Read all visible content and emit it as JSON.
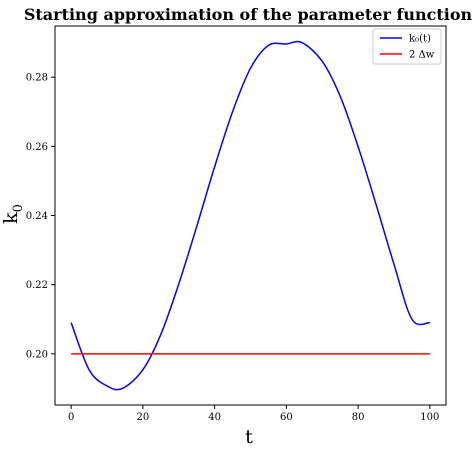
{
  "chart_data": {
    "type": "line",
    "title": "Starting approximation of the parameter function",
    "xlabel": "t",
    "ylabel": "k",
    "ylabel_subscript": "0",
    "xlim": [
      -4.5,
      104.5
    ],
    "ylim": [
      0.1852,
      0.2948
    ],
    "xticks": [
      0,
      20,
      40,
      60,
      80,
      100
    ],
    "xtick_labels": [
      "0",
      "20",
      "40",
      "60",
      "80",
      "100"
    ],
    "yticks": [
      0.2,
      0.22,
      0.24,
      0.26,
      0.28
    ],
    "ytick_labels": [
      "0.20",
      "0.22",
      "0.24",
      "0.26",
      "0.28"
    ],
    "grid": false,
    "legend_position": "top-right",
    "series": [
      {
        "name": "k₀(t)",
        "color": "#0000ff",
        "x": [
          0,
          5,
          10,
          14.3,
          20,
          25,
          30,
          35,
          40,
          45,
          50,
          55,
          60,
          64.3,
          70,
          75,
          80,
          85,
          90,
          95,
          100
        ],
        "y": [
          0.209,
          0.1954,
          0.1907,
          0.19,
          0.1954,
          0.2056,
          0.2202,
          0.2368,
          0.2541,
          0.27,
          0.2826,
          0.2892,
          0.2896,
          0.29,
          0.2846,
          0.2745,
          0.2599,
          0.2432,
          0.2259,
          0.21,
          0.209
        ]
      },
      {
        "name": "2 Δw",
        "color": "#ff0000",
        "x": [
          0,
          100
        ],
        "y": [
          0.2,
          0.2
        ]
      }
    ]
  }
}
